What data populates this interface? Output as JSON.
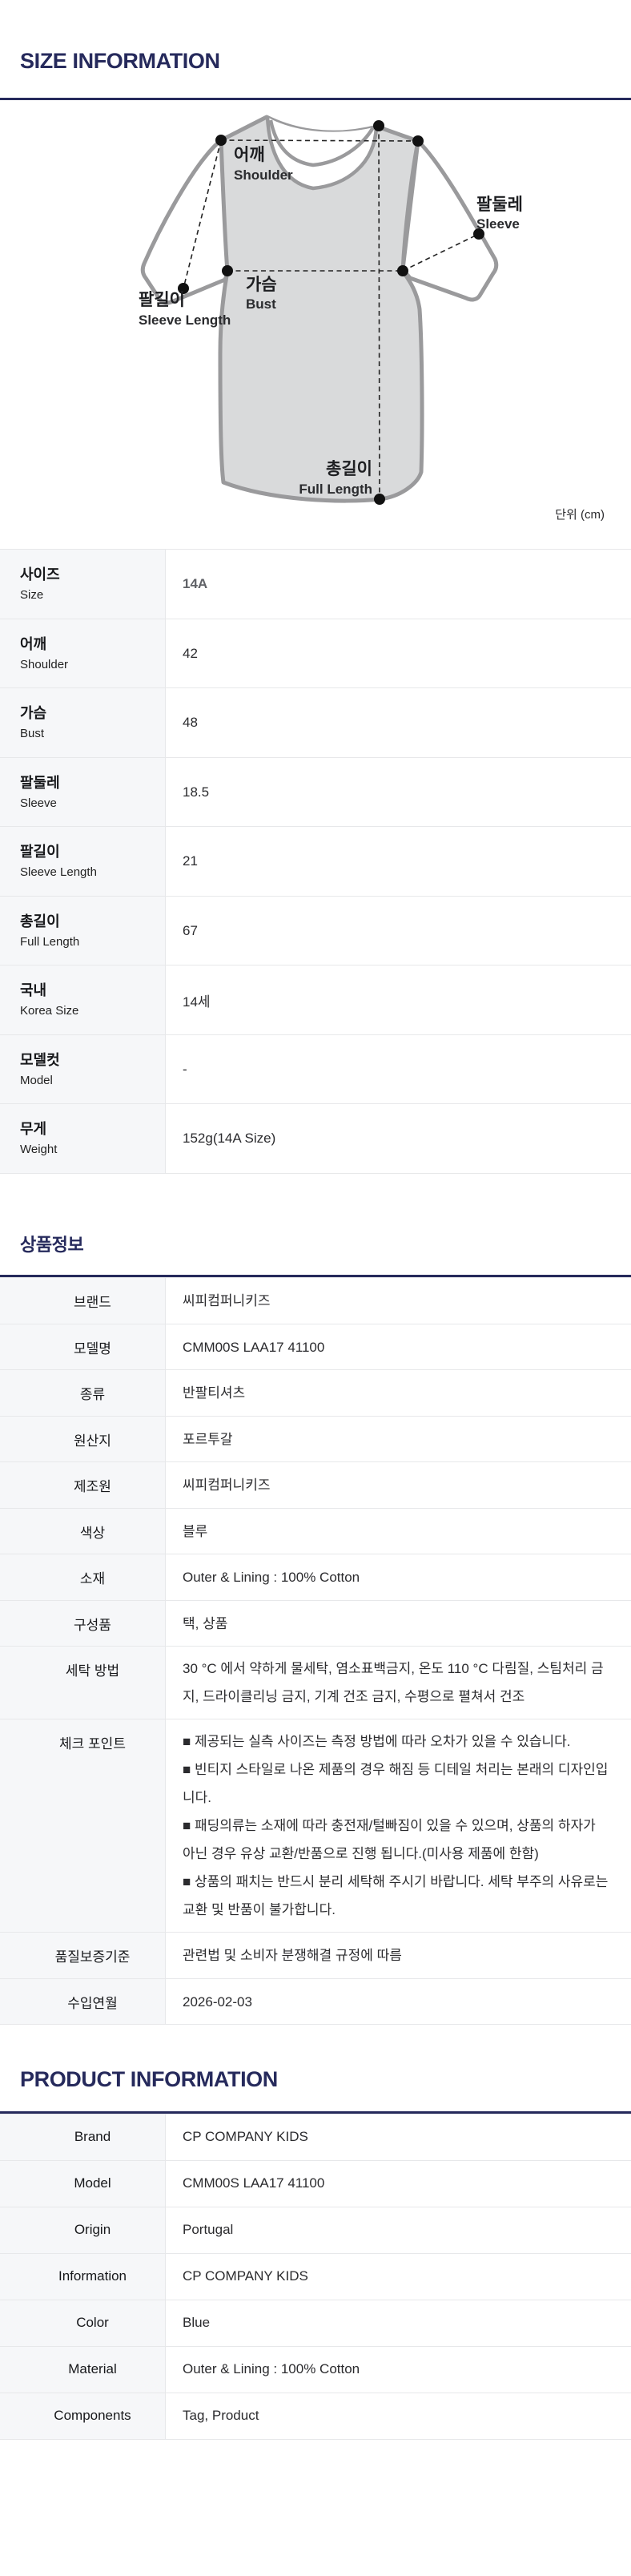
{
  "size_section": {
    "title": "SIZE INFORMATION",
    "unit_label": "단위 (cm)",
    "diagram_labels": {
      "shoulder_ko": "어깨",
      "shoulder_en": "Shoulder",
      "sleeve_ko": "팔둘레",
      "sleeve_en": "Sleeve",
      "bust_ko": "가슴",
      "bust_en": "Bust",
      "sleeve_length_ko": "팔길이",
      "sleeve_length_en": "Sleeve Length",
      "full_length_ko": "총길이",
      "full_length_en": "Full Length"
    },
    "table": {
      "rows": [
        {
          "ko": "사이즈",
          "en": "Size",
          "value": "14A"
        },
        {
          "ko": "어깨",
          "en": "Shoulder",
          "value": "42"
        },
        {
          "ko": "가슴",
          "en": "Bust",
          "value": "48"
        },
        {
          "ko": "팔둘레",
          "en": "Sleeve",
          "value": "18.5"
        },
        {
          "ko": "팔길이",
          "en": "Sleeve Length",
          "value": "21"
        },
        {
          "ko": "총길이",
          "en": "Full Length",
          "value": "67"
        },
        {
          "ko": "국내",
          "en": "Korea Size",
          "value": "14세"
        },
        {
          "ko": "모델컷",
          "en": "Model",
          "value": "-"
        },
        {
          "ko": "무게",
          "en": "Weight",
          "value": "152g(14A Size)"
        }
      ]
    }
  },
  "product_info_section": {
    "title": "상품정보",
    "rows": [
      {
        "label": "브랜드",
        "value": "씨피컴퍼니키즈"
      },
      {
        "label": "모델명",
        "value": "CMM00S LAA17 41100"
      },
      {
        "label": "종류",
        "value": "반팔티셔츠"
      },
      {
        "label": "원산지",
        "value": "포르투갈"
      },
      {
        "label": "제조원",
        "value": "씨피컴퍼니키즈"
      },
      {
        "label": "색상",
        "value": "블루"
      },
      {
        "label": "소재",
        "value": "Outer & Lining : 100% Cotton"
      },
      {
        "label": "구성품",
        "value": "택, 상품"
      },
      {
        "label": "세탁 방법",
        "value": "30 °C 에서 약하게 물세탁, 염소표백금지, 온도 110 °C 다림질, 스팀처리 금지, 드라이클리닝 금지, 기계 건조 금지, 수평으로 펼쳐서 건조",
        "tall": true
      },
      {
        "label": "체크 포인트",
        "lines": [
          "■ 제공되는 실측 사이즈는 측정 방법에 따라 오차가 있을 수 있습니다.",
          "■ 빈티지 스타일로 나온 제품의 경우 해짐 등 디테일 처리는 본래의 디자인입니다.",
          "■ 패딩의류는 소재에 따라 충전재/털빠짐이 있을 수 있으며, 상품의 하자가 아닌 경우 유상 교환/반품으로 진행 됩니다.(미사용 제품에 한함)",
          "■ 상품의 패치는 반드시 분리 세탁해 주시기 바랍니다. 세탁 부주의 사유로는 교환 및 반품이 불가합니다."
        ],
        "tall": true
      },
      {
        "label": "품질보증기준",
        "value": "관련법 및 소비자 분쟁해결 규정에 따름"
      },
      {
        "label": "수입연월",
        "value": "2026-02-03"
      }
    ]
  },
  "product_information_section": {
    "title": "PRODUCT INFORMATION",
    "rows": [
      {
        "label": "Brand",
        "value": "CP COMPANY KIDS"
      },
      {
        "label": "Model",
        "value": "CMM00S LAA17 41100"
      },
      {
        "label": "Origin",
        "value": "Portugal"
      },
      {
        "label": "Information",
        "value": "CP COMPANY KIDS"
      },
      {
        "label": "Color",
        "value": "Blue"
      },
      {
        "label": "Material",
        "value": "Outer & Lining : 100% Cotton"
      },
      {
        "label": "Components",
        "value": "Tag, Product"
      }
    ]
  },
  "colors": {
    "navy": "#262a5c",
    "label_bg": "#f6f7f9",
    "row_border": "#e7e8ea",
    "shirt_outline": "#9a9a9c",
    "shirt_fill": "#d9dadb"
  }
}
